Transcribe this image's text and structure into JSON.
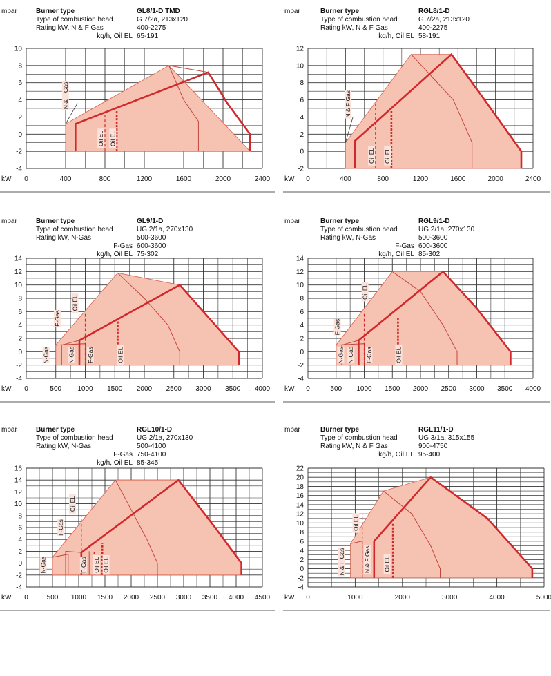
{
  "chart_data": [
    {
      "type": "area",
      "unit_y": "mbar",
      "unit_x": "kW",
      "burner_type_label": "Burner type",
      "burner_type": "GL8/1-D TMD",
      "head_label": "Type of combustion head",
      "head": "G 7/2a, 213x120",
      "ratings": [
        {
          "label": "Rating kW,   N & F Gas",
          "value": "400-2275"
        },
        {
          "label": "kg/h, Oil EL",
          "value": "65-191",
          "indent": true
        }
      ],
      "xticks": [
        0,
        400,
        800,
        1200,
        1600,
        2000,
        2400
      ],
      "xlim": [
        0,
        2400
      ],
      "yticks": [
        -4,
        -2,
        0,
        2,
        4,
        6,
        8,
        10
      ],
      "ylim": [
        -4,
        10
      ],
      "fill_area": [
        [
          400,
          -2
        ],
        [
          400,
          1.2
        ],
        [
          1450,
          8
        ],
        [
          2275,
          -2
        ]
      ],
      "gas_curve": [
        [
          500,
          -2
        ],
        [
          500,
          1.2
        ],
        [
          1850,
          7.2
        ],
        [
          2050,
          3.5
        ],
        [
          2275,
          0
        ],
        [
          2275,
          -2
        ]
      ],
      "thin_lines": [
        [
          [
            1450,
            8
          ],
          [
            1600,
            4
          ],
          [
            1750,
            1.5
          ],
          [
            1750,
            -2
          ]
        ],
        [
          [
            1450,
            8
          ],
          [
            1850,
            7.2
          ]
        ]
      ],
      "dashed_lines": [
        {
          "x": 800,
          "from": -2,
          "to": 2.5,
          "width": 1.2
        },
        {
          "x": 920,
          "from": -2,
          "to": 2.8,
          "width": 2.6
        }
      ],
      "labels": [
        {
          "text": "N & F Gas",
          "x": 420,
          "y": 4.5,
          "vertical": true,
          "leader": [
            [
              400,
              1.2
            ],
            [
              520,
              3.6
            ]
          ]
        },
        {
          "text": "Oil EL",
          "x": 780,
          "y": -0.5,
          "vertical": true
        },
        {
          "text": "Oil EL",
          "x": 900,
          "y": -0.5,
          "vertical": true
        }
      ]
    },
    {
      "type": "area",
      "unit_y": "mbar",
      "unit_x": "kW",
      "burner_type_label": "Burner type",
      "burner_type": "RGL8/1-D",
      "head_label": "Type of combustion head",
      "head": "G 7/2a, 213x120",
      "ratings": [
        {
          "label": "Rating kW,   N & F Gas",
          "value": "400-2275"
        },
        {
          "label": "kg/h, Oil EL",
          "value": "58-191",
          "indent": true
        }
      ],
      "xticks": [
        0,
        400,
        800,
        1200,
        1600,
        2000,
        2400
      ],
      "xlim": [
        0,
        2400
      ],
      "yticks": [
        -2,
        0,
        2,
        4,
        6,
        8,
        10,
        12
      ],
      "ylim": [
        -2,
        12
      ],
      "fill_area": [
        [
          400,
          -2
        ],
        [
          400,
          1
        ],
        [
          1100,
          11.3
        ],
        [
          1530,
          11.3
        ],
        [
          1850,
          6.5
        ],
        [
          2275,
          0
        ],
        [
          2275,
          -2
        ]
      ],
      "gas_curve": [
        [
          500,
          -2
        ],
        [
          500,
          1.2
        ],
        [
          1530,
          11.3
        ],
        [
          1850,
          6.5
        ],
        [
          2275,
          0
        ],
        [
          2275,
          -2
        ]
      ],
      "thin_lines": [
        [
          [
            1100,
            11.3
          ],
          [
            1550,
            6
          ],
          [
            1750,
            1
          ],
          [
            1750,
            -2
          ]
        ]
      ],
      "dashed_lines": [
        {
          "x": 720,
          "from": -2,
          "to": 5.5,
          "width": 1.2
        },
        {
          "x": 890,
          "from": -2,
          "to": 4.8,
          "width": 2.6
        }
      ],
      "labels": [
        {
          "text": "N & F Gas",
          "x": 450,
          "y": 5.5,
          "vertical": true,
          "leader": [
            [
              400,
              1
            ],
            [
              480,
              4
            ]
          ]
        },
        {
          "text": "Oil EL",
          "x": 700,
          "y": -0.5,
          "vertical": true
        },
        {
          "text": "Oil EL",
          "x": 870,
          "y": -0.5,
          "vertical": true
        }
      ]
    },
    {
      "type": "area",
      "unit_y": "mbar",
      "unit_x": "kW",
      "burner_type_label": "Burner type",
      "burner_type": "GL9/1-D",
      "head_label": "Type of combustion head",
      "head": "UG 2/1a, 270x130",
      "ratings": [
        {
          "label": "Rating kW,   N-Gas",
          "value": "500-3600"
        },
        {
          "label": "F-Gas",
          "value": "600-3600",
          "indent": true
        },
        {
          "label": "kg/h, Oil EL",
          "value": "75-302",
          "indent": true
        }
      ],
      "xticks": [
        0,
        500,
        1000,
        1500,
        2000,
        2500,
        3000,
        3500,
        4000
      ],
      "xlim": [
        0,
        4000
      ],
      "yticks": [
        -4,
        -2,
        0,
        2,
        4,
        6,
        8,
        10,
        12,
        14
      ],
      "ylim": [
        -4,
        14
      ],
      "fill_area": [
        [
          500,
          -2
        ],
        [
          500,
          1
        ],
        [
          1550,
          11.8
        ],
        [
          2600,
          10
        ],
        [
          3000,
          6
        ],
        [
          3600,
          0
        ],
        [
          3600,
          -2
        ]
      ],
      "gas_curve": [
        [
          900,
          -2
        ],
        [
          900,
          1.7
        ],
        [
          2600,
          10
        ],
        [
          3000,
          6
        ],
        [
          3600,
          0
        ],
        [
          3600,
          -2
        ]
      ],
      "thin_lines": [
        [
          [
            1550,
            11.8
          ],
          [
            2000,
            8
          ],
          [
            2400,
            4
          ],
          [
            2600,
            0
          ],
          [
            2600,
            -2
          ]
        ],
        [
          [
            500,
            1
          ],
          [
            1000,
            1.2
          ],
          [
            1000,
            -2
          ]
        ],
        [
          [
            600,
            -2
          ],
          [
            600,
            1
          ],
          [
            900,
            1.7
          ]
        ]
      ],
      "dashed_lines": [
        {
          "x": 1000,
          "from": -2,
          "to": 6,
          "width": 1.2
        },
        {
          "x": 1550,
          "from": -2,
          "to": 4.8,
          "width": 2.6
        }
      ],
      "labels": [
        {
          "text": "N-Gas",
          "x": 370,
          "y": -0.5,
          "vertical": true
        },
        {
          "text": "F-Gas",
          "x": 560,
          "y": 5,
          "vertical": true
        },
        {
          "text": "Oil EL",
          "x": 860,
          "y": 7.3,
          "vertical": true
        },
        {
          "text": "N-Gas",
          "x": 800,
          "y": -0.5,
          "vertical": true
        },
        {
          "text": "F-Gas",
          "x": 1120,
          "y": -0.5,
          "vertical": true
        },
        {
          "text": "Oil EL",
          "x": 1630,
          "y": -0.5,
          "vertical": true
        }
      ]
    },
    {
      "type": "area",
      "unit_y": "mbar",
      "unit_x": "kW",
      "burner_type_label": "Burner type",
      "burner_type": "RGL9/1-D",
      "head_label": "Type of combustion head",
      "head": "UG 2/1a, 270x130",
      "ratings": [
        {
          "label": "Rating kW,   N-Gas",
          "value": "500-3600"
        },
        {
          "label": "F-Gas",
          "value": "600-3600",
          "indent": true
        },
        {
          "label": "kg/h, Oil EL",
          "value": "85-302",
          "indent": true
        }
      ],
      "xticks": [
        0,
        500,
        1000,
        1500,
        2000,
        2500,
        3000,
        3500,
        4000
      ],
      "xlim": [
        0,
        4000
      ],
      "yticks": [
        -4,
        -2,
        0,
        2,
        4,
        6,
        8,
        10,
        12,
        14
      ],
      "ylim": [
        -4,
        14
      ],
      "fill_area": [
        [
          500,
          -2
        ],
        [
          500,
          1
        ],
        [
          1500,
          12
        ],
        [
          2400,
          12
        ],
        [
          3000,
          6.5
        ],
        [
          3600,
          0
        ],
        [
          3600,
          -2
        ]
      ],
      "gas_curve": [
        [
          900,
          -2
        ],
        [
          900,
          1.7
        ],
        [
          2400,
          12
        ],
        [
          3000,
          6.5
        ],
        [
          3600,
          0
        ],
        [
          3600,
          -2
        ]
      ],
      "thin_lines": [
        [
          [
            1500,
            12
          ],
          [
            2000,
            9
          ],
          [
            2400,
            4
          ],
          [
            2650,
            0
          ],
          [
            2650,
            -2
          ]
        ],
        [
          [
            500,
            1
          ],
          [
            1000,
            1.2
          ],
          [
            1000,
            -2
          ]
        ],
        [
          [
            600,
            -2
          ],
          [
            600,
            1
          ],
          [
            900,
            1.7
          ]
        ]
      ],
      "dashed_lines": [
        {
          "x": 1000,
          "from": -2,
          "to": 6,
          "width": 1.2
        },
        {
          "x": 1600,
          "from": -2,
          "to": 5,
          "width": 2.6
        }
      ],
      "labels": [
        {
          "text": "F-Gas",
          "x": 560,
          "y": 3.7,
          "vertical": true
        },
        {
          "text": "Oil EL",
          "x": 1050,
          "y": 9,
          "vertical": true
        },
        {
          "text": "N-Gas",
          "x": 800,
          "y": -0.5,
          "vertical": true
        },
        {
          "text": "F-Gas",
          "x": 1120,
          "y": -0.5,
          "vertical": true
        },
        {
          "text": "N-Gas",
          "x": 620,
          "y": -0.5,
          "vertical": true
        },
        {
          "text": "Oil EL",
          "x": 1650,
          "y": -0.5,
          "vertical": true
        }
      ]
    },
    {
      "type": "area",
      "unit_y": "mbar",
      "unit_x": "kW",
      "burner_type_label": "Burner type",
      "burner_type": "RGL10/1-D",
      "head_label": "Type of combustion head",
      "head": "UG 2/1a, 270x130",
      "ratings": [
        {
          "label": "Rating kW,   N-Gas",
          "value": "500-4100"
        },
        {
          "label": "F-Gas",
          "value": "750-4100",
          "indent": true
        },
        {
          "label": "kg/h, Oil EL",
          "value": "85-345",
          "indent": true
        }
      ],
      "xticks": [
        0,
        500,
        1000,
        1500,
        2000,
        2500,
        3000,
        3500,
        4000,
        4500
      ],
      "xlim": [
        0,
        4500
      ],
      "yticks": [
        -4,
        -2,
        0,
        2,
        4,
        6,
        8,
        10,
        12,
        14,
        16
      ],
      "ylim": [
        -4,
        16
      ],
      "fill_area": [
        [
          500,
          -2
        ],
        [
          500,
          1
        ],
        [
          1700,
          14
        ],
        [
          2900,
          14
        ],
        [
          3600,
          6
        ],
        [
          4100,
          0
        ],
        [
          4100,
          -2
        ]
      ],
      "gas_curve": [
        [
          1050,
          -2
        ],
        [
          1050,
          1.8
        ],
        [
          2900,
          14
        ],
        [
          3600,
          6
        ],
        [
          4100,
          0
        ],
        [
          4100,
          -2
        ]
      ],
      "thin_lines": [
        [
          [
            1700,
            14
          ],
          [
            2000,
            9
          ],
          [
            2300,
            4
          ],
          [
            2500,
            0
          ],
          [
            2500,
            -2
          ]
        ],
        [
          [
            500,
            1
          ],
          [
            800,
            1.5
          ],
          [
            800,
            -2
          ]
        ],
        [
          [
            750,
            -2
          ],
          [
            750,
            2
          ],
          [
            1050,
            1.8
          ]
        ],
        [
          [
            1200,
            -2
          ],
          [
            1200,
            2
          ]
        ]
      ],
      "dashed_lines": [
        {
          "x": 1050,
          "from": -2,
          "to": 8,
          "width": 1.2
        },
        {
          "x": 1300,
          "from": -2,
          "to": 2,
          "width": 2.2
        },
        {
          "x": 1450,
          "from": -2,
          "to": 3.4,
          "width": 2.6
        }
      ],
      "labels": [
        {
          "text": "N-Gas",
          "x": 360,
          "y": -0.3,
          "vertical": true
        },
        {
          "text": "F-Gas",
          "x": 700,
          "y": 6,
          "vertical": true
        },
        {
          "text": "Oil EL",
          "x": 920,
          "y": 10,
          "vertical": true
        },
        {
          "text": "F-Gas",
          "x": 1130,
          "y": -0.3,
          "vertical": true
        },
        {
          "text": "Oil EL",
          "x": 1380,
          "y": -0.3,
          "vertical": true
        },
        {
          "text": "Oil EL",
          "x": 1560,
          "y": -0.3,
          "vertical": true
        }
      ]
    },
    {
      "type": "area",
      "unit_y": "mbar",
      "unit_x": "kW",
      "burner_type_label": "Burner type",
      "burner_type": "RGL11/1-D",
      "head_label": "Type of combustion head",
      "head": "UG 3/1a, 315x155",
      "ratings": [
        {
          "label": "Rating kW,   N & F Gas",
          "value": "900-4750"
        },
        {
          "label": "kg/h, Oil EL",
          "value": "95-400",
          "indent": true
        }
      ],
      "xticks": [
        0,
        1000,
        2000,
        3000,
        4000,
        5000
      ],
      "xlim": [
        0,
        5000
      ],
      "yticks": [
        -4,
        -2,
        0,
        2,
        4,
        6,
        8,
        10,
        12,
        14,
        16,
        18,
        20,
        22
      ],
      "ylim": [
        -4,
        22
      ],
      "fill_area": [
        [
          900,
          -2
        ],
        [
          900,
          5.5
        ],
        [
          1600,
          17
        ],
        [
          2600,
          20
        ],
        [
          3800,
          11
        ],
        [
          4750,
          0
        ],
        [
          4750,
          -2
        ]
      ],
      "gas_curve": [
        [
          1400,
          -2
        ],
        [
          1400,
          6
        ],
        [
          2600,
          20
        ],
        [
          3800,
          11
        ],
        [
          4750,
          0
        ],
        [
          4750,
          -2
        ]
      ],
      "thin_lines": [
        [
          [
            1600,
            17
          ],
          [
            2200,
            12
          ],
          [
            2600,
            5
          ],
          [
            2800,
            0
          ],
          [
            2800,
            -2
          ]
        ],
        [
          [
            900,
            5.5
          ],
          [
            1150,
            6
          ],
          [
            1150,
            -2
          ]
        ]
      ],
      "dashed_lines": [
        {
          "x": 1150,
          "from": -2,
          "to": 12,
          "width": 1.2
        },
        {
          "x": 1800,
          "from": -2,
          "to": 10,
          "width": 2.6
        }
      ],
      "labels": [
        {
          "text": "N & F Gas",
          "x": 760,
          "y": 1.5,
          "vertical": true
        },
        {
          "text": "Oil EL",
          "x": 1060,
          "y": 10,
          "vertical": true
        },
        {
          "text": "N & F Gas",
          "x": 1300,
          "y": 2,
          "vertical": true
        },
        {
          "text": "Oil EL",
          "x": 1720,
          "y": 1,
          "vertical": true
        }
      ]
    }
  ]
}
